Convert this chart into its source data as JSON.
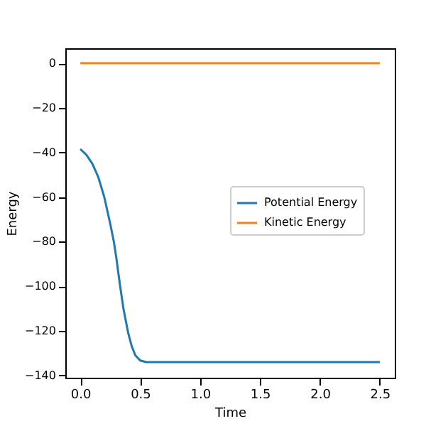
{
  "chart_data": {
    "type": "line",
    "xlabel": "Time",
    "ylabel": "Energy",
    "xlim": [
      -0.125,
      2.625
    ],
    "ylim": [
      -141,
      6.7
    ],
    "xticks": [
      {
        "value": 0,
        "label": "0.0"
      },
      0.5,
      {
        "value": 1,
        "label": "1.0"
      },
      1.5,
      {
        "value": 2,
        "label": "2.0"
      },
      2.5
    ],
    "yticks": [
      -140,
      -120,
      -100,
      -80,
      -60,
      -40,
      -20,
      0
    ],
    "legend": "right",
    "grid": false,
    "series": [
      {
        "name": "Potential Energy",
        "color": "#1f77b4",
        "x": [
          0,
          0.05,
          0.1,
          0.15,
          0.2,
          0.25,
          0.28,
          0.3,
          0.33,
          0.36,
          0.4,
          0.43,
          0.46,
          0.5,
          0.55,
          0.6,
          1.0,
          1.5,
          2.0,
          2.5
        ],
        "values": [
          -38.5,
          -41,
          -45,
          -51,
          -60,
          -72,
          -80,
          -87,
          -99,
          -110,
          -121,
          -127,
          -131,
          -133.3,
          -134,
          -134,
          -134,
          -134,
          -134,
          -134
        ]
      },
      {
        "name": "Kinetic Energy",
        "color": "#ff7f0e",
        "x": [
          0,
          2.5
        ],
        "values": [
          0,
          0
        ]
      }
    ]
  }
}
